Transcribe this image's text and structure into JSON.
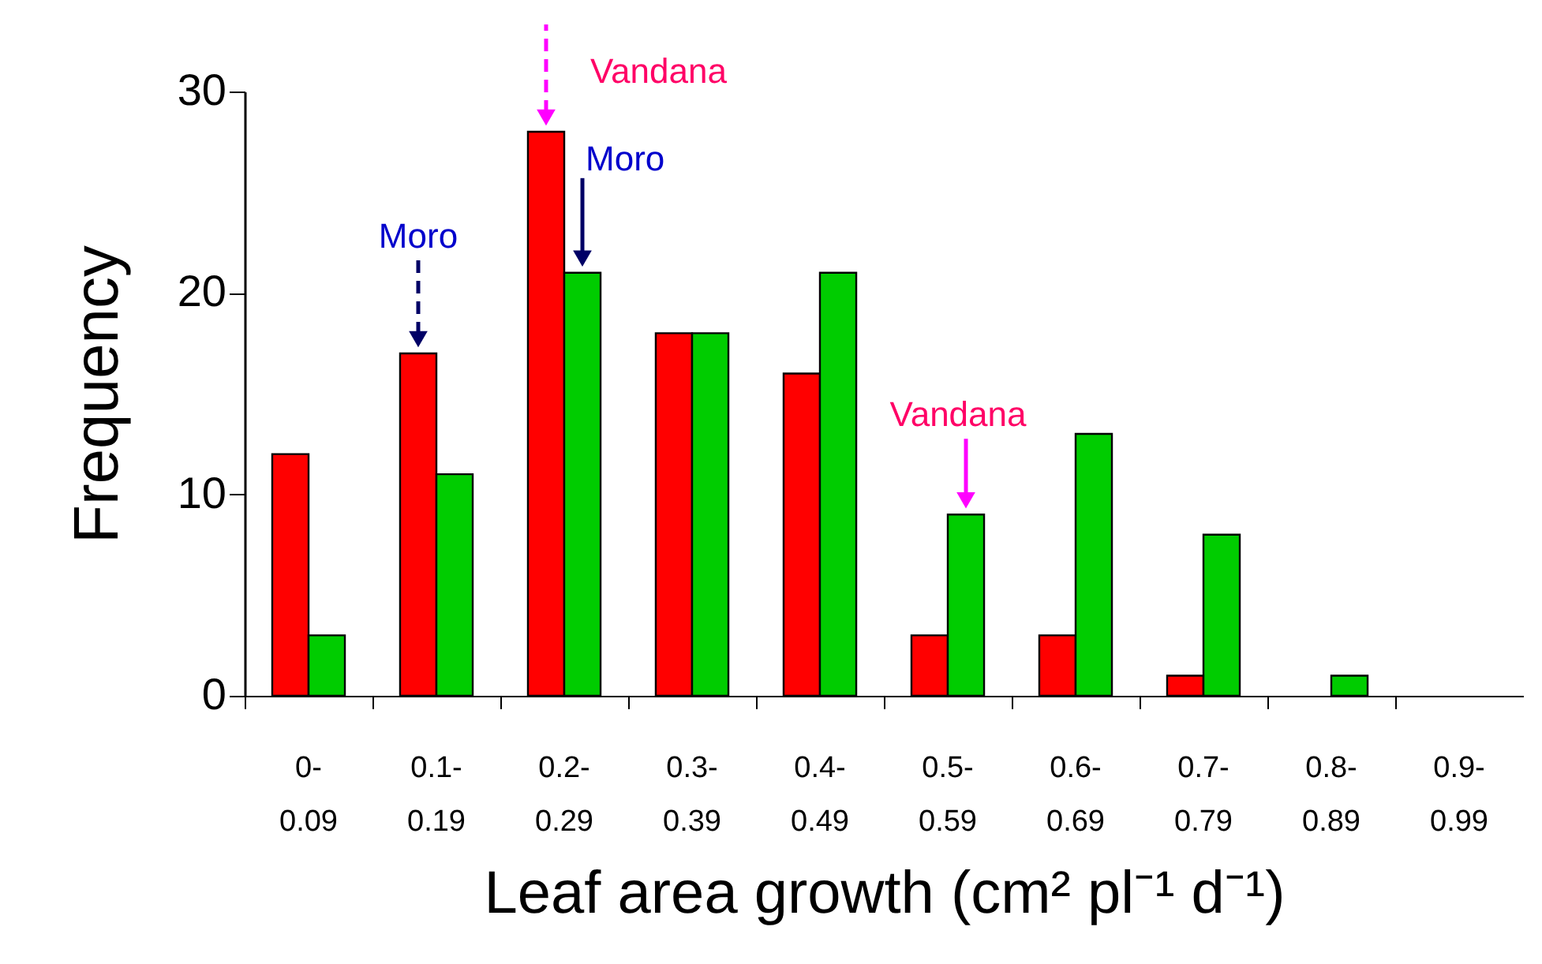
{
  "chart_data": {
    "type": "bar",
    "categories": [
      "0- 0.09",
      "0.1- 0.19",
      "0.2- 0.29",
      "0.3- 0.39",
      "0.4- 0.49",
      "0.5- 0.59",
      "0.6- 0.69",
      "0.7- 0.79",
      "0.8- 0.89",
      "0.9- 0.99"
    ],
    "series": [
      {
        "color": "#ff0000",
        "values": [
          12,
          17,
          28,
          18,
          16,
          3,
          3,
          1,
          0,
          0
        ]
      },
      {
        "color": "#00cc00",
        "values": [
          3,
          11,
          21,
          18,
          21,
          9,
          13,
          8,
          1,
          0
        ]
      }
    ],
    "ylabel": "Frequency",
    "xlabel": "Leaf area growth (cm² pl⁻¹ d⁻¹)",
    "ylim": [
      0,
      30
    ],
    "yticks": [
      0,
      10,
      20,
      30
    ],
    "grid": false,
    "annotations": [
      {
        "text": "Moro",
        "x": "0.1- 0.19",
        "y": 17
      },
      {
        "text": "Vandana",
        "x": "0.2- 0.29",
        "y": 28
      },
      {
        "text": "Moro",
        "x": "0.2- 0.29",
        "y": 21
      },
      {
        "text": "Vandana",
        "x": "0.5- 0.59",
        "y": 9
      }
    ]
  }
}
